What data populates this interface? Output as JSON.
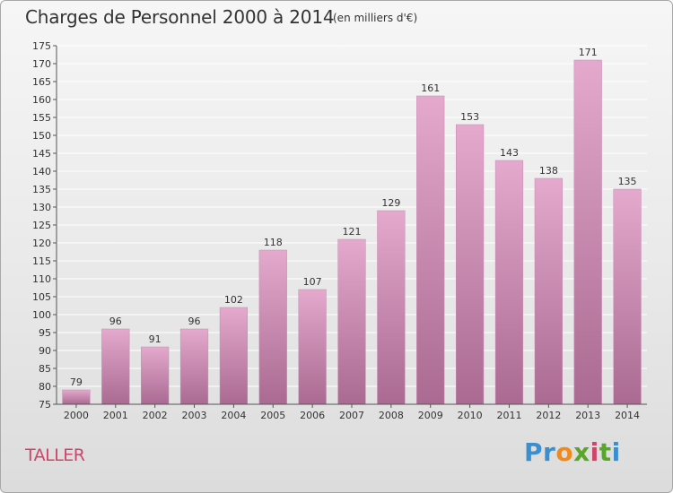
{
  "header": {
    "title": "Charges de Personnel 2000 à 2014",
    "subtitle": "(en milliers d'€)"
  },
  "footer": {
    "commune": "TALLER",
    "logo_text": "Proxiti",
    "logo_letters": [
      {
        "ch": "P",
        "color": "#3a8fd0"
      },
      {
        "ch": "r",
        "color": "#3a8fd0"
      },
      {
        "ch": "o",
        "color": "#f08a1a"
      },
      {
        "ch": "x",
        "color": "#5aa62a"
      },
      {
        "ch": "i",
        "color": "#d0446a"
      },
      {
        "ch": "t",
        "color": "#5aa62a"
      },
      {
        "ch": "i",
        "color": "#3a8fd0"
      }
    ]
  },
  "chart_data": {
    "type": "bar",
    "title": "Charges de Personnel 2000 à 2014",
    "subtitle": "(en milliers d'€)",
    "xlabel": "",
    "ylabel": "",
    "categories": [
      "2000",
      "2001",
      "2002",
      "2003",
      "2004",
      "2005",
      "2006",
      "2007",
      "2008",
      "2009",
      "2010",
      "2011",
      "2012",
      "2013",
      "2014"
    ],
    "values": [
      79,
      96,
      91,
      96,
      102,
      118,
      107,
      121,
      129,
      161,
      153,
      143,
      138,
      171,
      135
    ],
    "ylim": [
      75,
      175
    ],
    "yticks": [
      75,
      80,
      85,
      90,
      95,
      100,
      105,
      110,
      115,
      120,
      125,
      130,
      135,
      140,
      145,
      150,
      155,
      160,
      165,
      170,
      175
    ],
    "grid": true,
    "legend": "none",
    "colors": {
      "bar_top": "#e4a9cd",
      "bar_bottom": "#aa6a91",
      "grid": "#ffffff",
      "axis": "#555555"
    }
  }
}
